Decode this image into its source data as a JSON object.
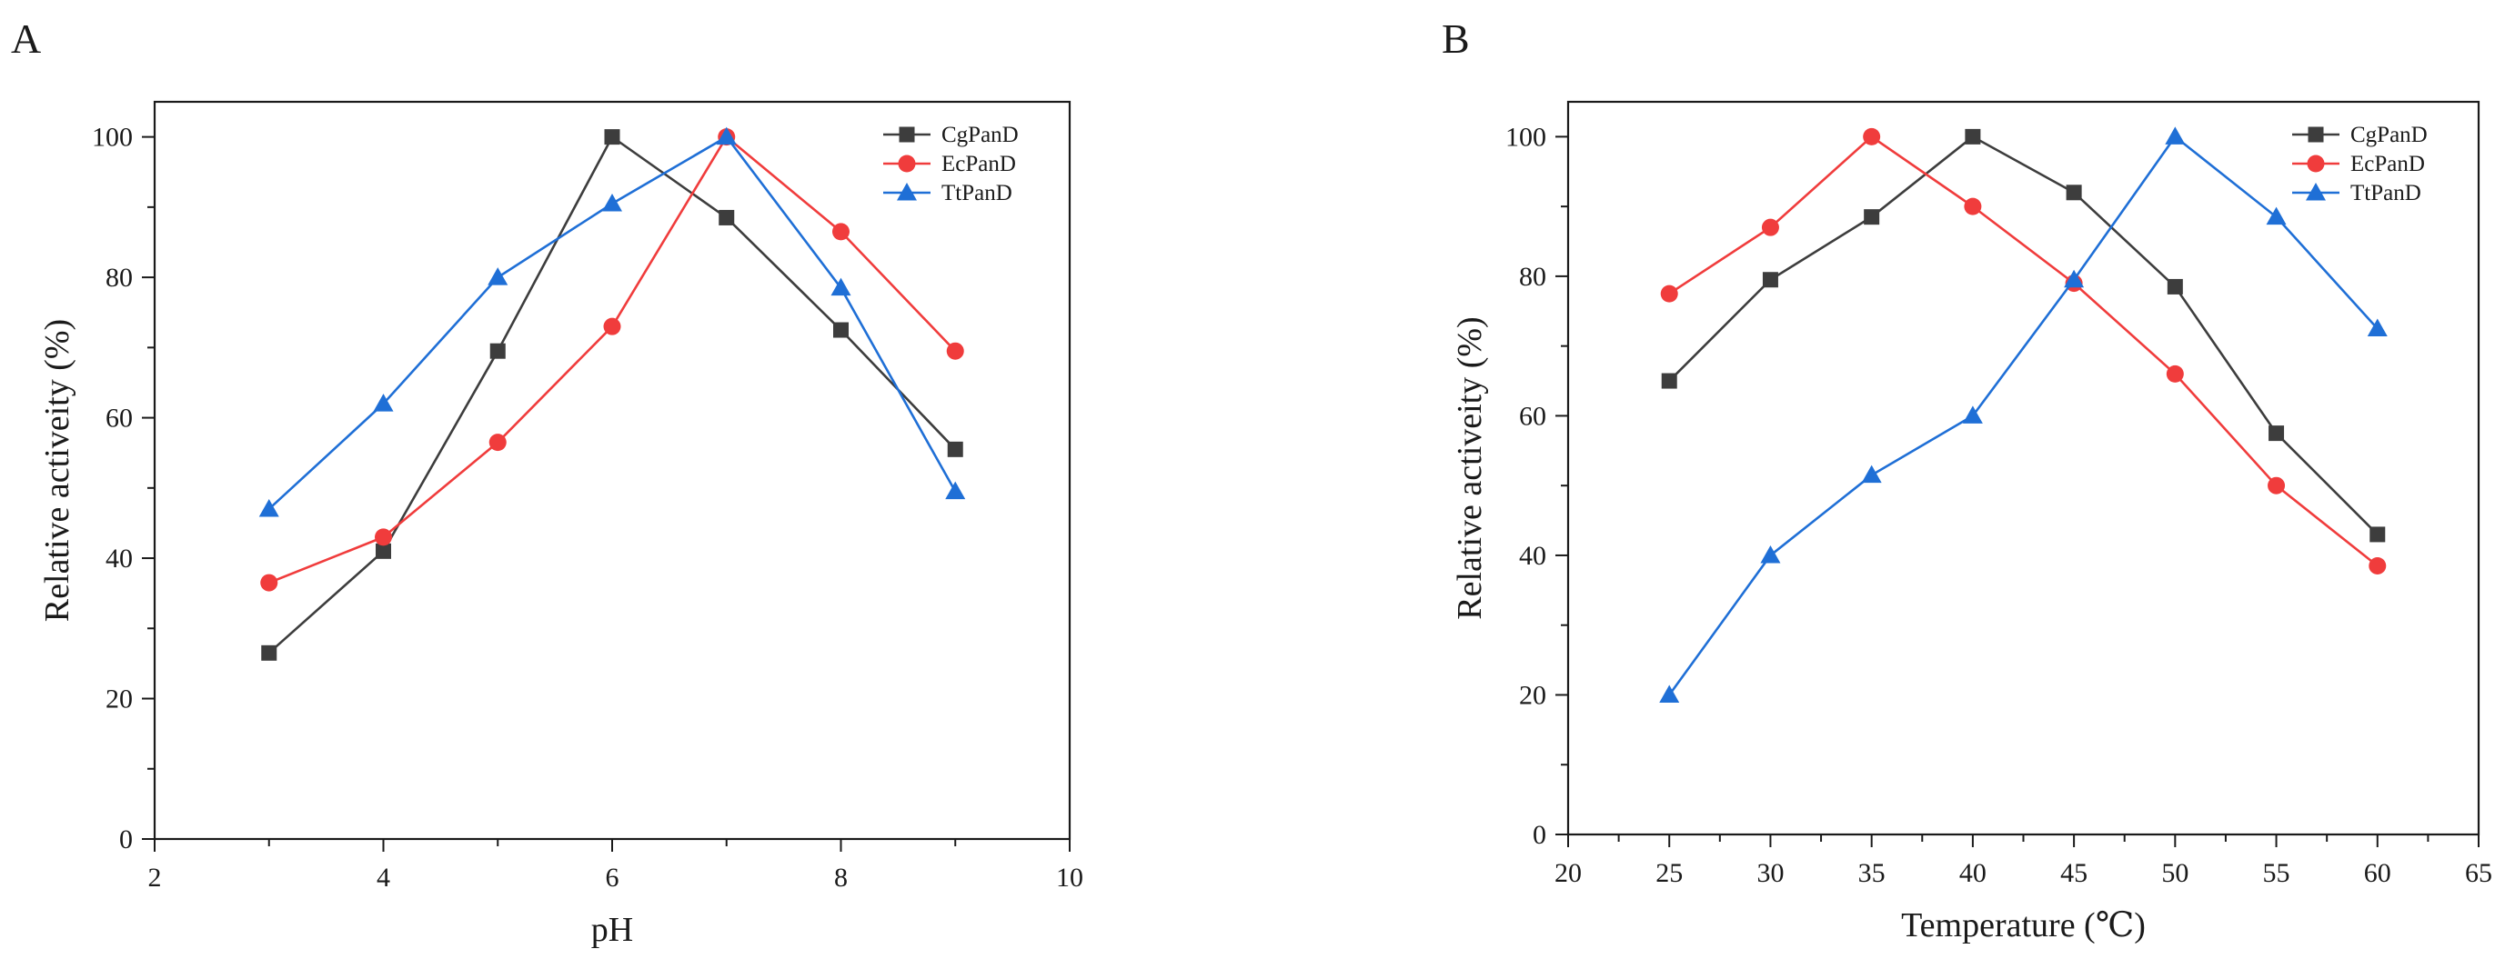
{
  "chart_data": [
    {
      "type": "line",
      "panel_label": "A",
      "title": "",
      "xlabel": "pH",
      "ylabel": "Relative activeity (%)",
      "xlim": [
        2,
        10
      ],
      "ylim": [
        0,
        105
      ],
      "xticks": [
        2,
        4,
        6,
        8,
        10
      ],
      "yticks": [
        0,
        20,
        40,
        60,
        80,
        100
      ],
      "legend_position": "top-right",
      "grid": false,
      "x": [
        3,
        4,
        5,
        6,
        7,
        8,
        9
      ],
      "series": [
        {
          "name": "CgPanD",
          "marker": "square",
          "color": "#3d3d3d",
          "values": [
            26.5,
            41,
            69.5,
            100,
            88.5,
            72.5,
            55.5
          ]
        },
        {
          "name": "EcPanD",
          "marker": "circle",
          "color": "#f03c3c",
          "values": [
            36.5,
            43,
            56.5,
            73,
            100,
            86.5,
            69.5
          ]
        },
        {
          "name": "TtPanD",
          "marker": "triangle",
          "color": "#1f6fd6",
          "values": [
            47,
            62,
            80,
            90.5,
            100,
            78.5,
            49.5
          ]
        }
      ]
    },
    {
      "type": "line",
      "panel_label": "B",
      "title": "",
      "xlabel": "Temperature (℃)",
      "ylabel": "Relative activeity (%)",
      "xlim": [
        20,
        65
      ],
      "ylim": [
        0,
        105
      ],
      "xticks": [
        20,
        25,
        30,
        35,
        40,
        45,
        50,
        55,
        60,
        65
      ],
      "yticks": [
        0,
        20,
        40,
        60,
        80,
        100
      ],
      "legend_position": "top-right",
      "grid": false,
      "x": [
        25,
        30,
        35,
        40,
        45,
        50,
        55,
        60
      ],
      "series": [
        {
          "name": "CgPanD",
          "marker": "square",
          "color": "#3d3d3d",
          "values": [
            65,
            79.5,
            88.5,
            100,
            92,
            78.5,
            57.5,
            43
          ]
        },
        {
          "name": "EcPanD",
          "marker": "circle",
          "color": "#f03c3c",
          "values": [
            77.5,
            87,
            100,
            90,
            79,
            66,
            50,
            38.5
          ]
        },
        {
          "name": "TtPanD",
          "marker": "triangle",
          "color": "#1f6fd6",
          "values": [
            20,
            40,
            51.5,
            60,
            79.5,
            100,
            88.5,
            72.5
          ]
        }
      ]
    }
  ]
}
